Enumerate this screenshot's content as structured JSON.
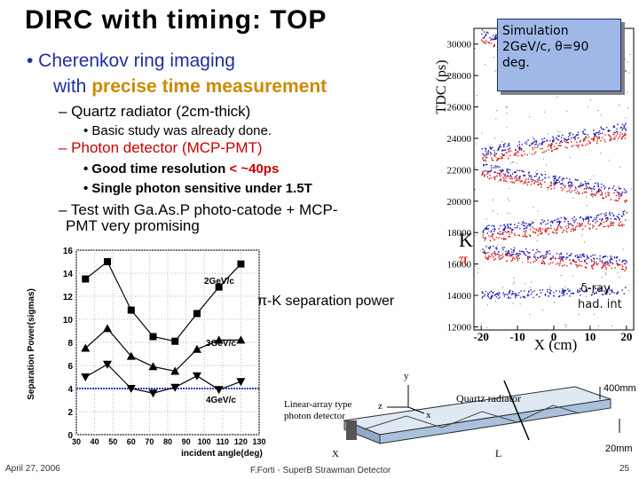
{
  "slide": {
    "title": "DIRC with timing: TOP",
    "bullet1_line1": "• Cherenkov ring imaging",
    "bullet1_line2_pre": "with ",
    "bullet1_line2_hl": "precise time measurement",
    "sub1": "– Quartz radiator (2cm-thick)",
    "sub1a": "• Basic study was already done.",
    "sub2": "– Photon detector (MCP-PMT)",
    "sub2a_pre": "• Good time resolution ",
    "sub2a_red": "< ~40ps",
    "sub2b": "• Single photon sensitive under 1.5T",
    "sub3_line1": "– Test with Ga.As.P photo-catode + MCP-",
    "sub3_line2": "PMT very promising",
    "footer_date": "April 27, 2006",
    "footer_center": "F.Forti - SuperB Strawman Detector",
    "page_number": "25"
  },
  "simulation": {
    "box_line1": "Simulation",
    "box_line2": "2GeV/c, θ=90",
    "box_line3": "deg.",
    "ylabel": "TDC (ps)",
    "xlabel": "X (cm)",
    "yticks": [
      "30000",
      "28000",
      "26000",
      "24000",
      "22000",
      "20000",
      "18000",
      "16000",
      "14000",
      "12000"
    ],
    "xticks": [
      "-20",
      "-10",
      "0",
      "10",
      "20"
    ],
    "label_K": "K",
    "label_pi": "π",
    "label_delta": "δ-ray,",
    "label_had": "had. int",
    "colors": {
      "K": "#1a1ab0",
      "pi": "#d01818"
    }
  },
  "quartz": {
    "title": "Quartz radiator",
    "det_line1": "Linear-array type",
    "det_line2": "photon detector",
    "dim_400": "400mm",
    "dim_20": "20mm",
    "label_L": "L",
    "axis_y": "y",
    "axis_z": "z",
    "axis_x": "x",
    "axis_X": "X"
  },
  "chart_data": {
    "type": "line",
    "ylabel": "Separation Power(sigmas)",
    "xlabel": "incident angle(deg)",
    "annotation": "π-K separation power",
    "x": [
      30,
      40,
      50,
      60,
      70,
      80,
      90,
      100,
      110,
      120,
      130
    ],
    "xlim": [
      30,
      130
    ],
    "ylim": [
      0,
      16
    ],
    "xticks": [
      "30",
      "40",
      "50",
      "60",
      "70",
      "80",
      "90",
      "100",
      "110",
      "120",
      "130"
    ],
    "yticks": [
      "0",
      "2",
      "4",
      "6",
      "8",
      "10",
      "12",
      "14",
      "16"
    ],
    "series": [
      {
        "name": "2GeV/c",
        "x": [
          35,
          47,
          60,
          72,
          84,
          96,
          108,
          120
        ],
        "values": [
          13.5,
          15.0,
          10.8,
          8.5,
          8.1,
          10.5,
          12.8,
          14.8
        ],
        "marker": "square"
      },
      {
        "name": "3GeV/c",
        "x": [
          35,
          47,
          60,
          72,
          84,
          96,
          108,
          120
        ],
        "values": [
          7.5,
          9.2,
          6.8,
          5.9,
          5.5,
          7.4,
          8.2,
          8.2
        ],
        "marker": "triangle"
      },
      {
        "name": "4GeV/c",
        "x": [
          35,
          47,
          60,
          72,
          84,
          96,
          108,
          120
        ],
        "values": [
          5.0,
          6.1,
          4.0,
          3.6,
          4.1,
          5.1,
          3.9,
          4.6
        ],
        "marker": "triangle-down"
      }
    ],
    "reference_line": 4
  }
}
